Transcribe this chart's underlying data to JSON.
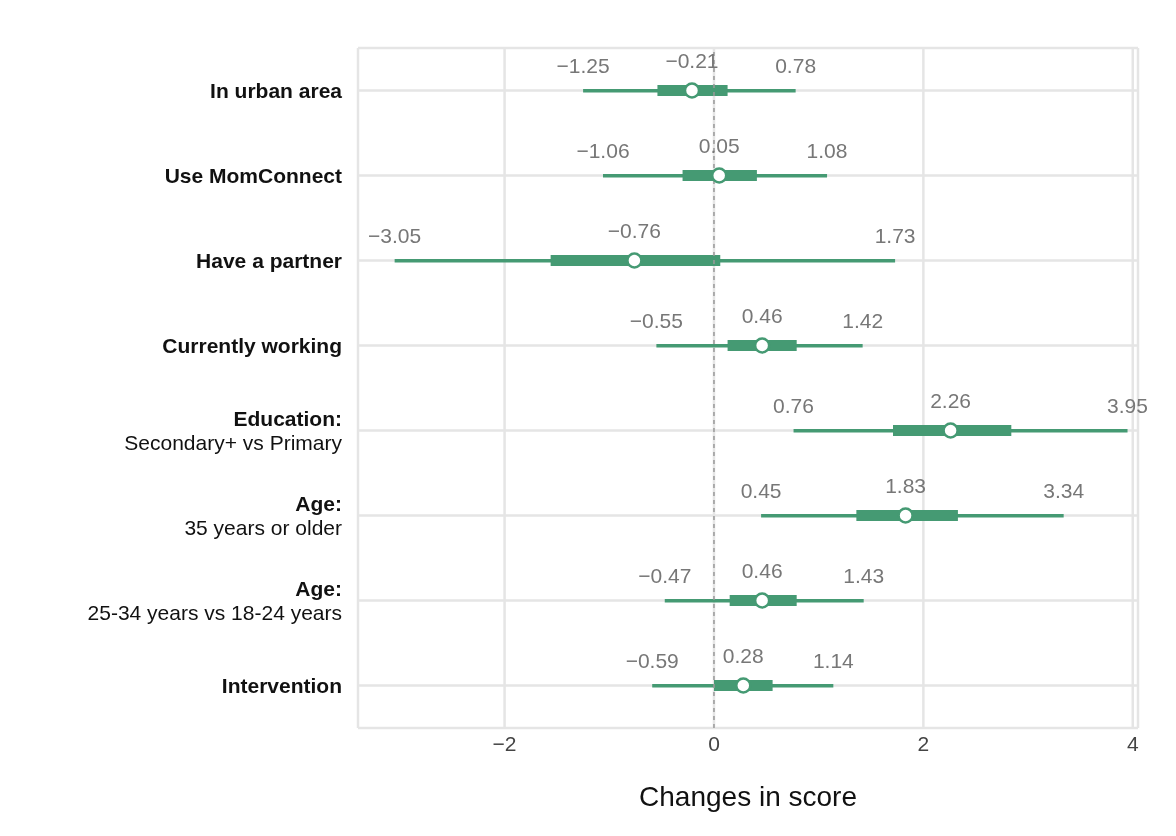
{
  "chart_data": {
    "type": "bar",
    "orientation": "horizontal",
    "xlabel": "Changes in score",
    "categories": [
      "In urban area",
      "Use MomConnect",
      "Have a partner",
      "Currently working",
      "Education:\nSecondary+ vs Primary",
      "Age:\n35 years or older",
      "Age:\n25-34 years vs 18-24 years",
      "Intervention"
    ],
    "series": [
      {
        "color": "#459a73",
        "base": [
          -1.25,
          -1.06,
          -3.05,
          -0.55,
          0.76,
          0.45,
          -0.47,
          -0.59
        ],
        "values": [
          2.03,
          2.14,
          4.78,
          1.97,
          3.19,
          2.89,
          1.9,
          1.73
        ]
      },
      {
        "color": "#459a73",
        "base": [
          -0.54,
          -0.3,
          -1.56,
          0.13,
          1.71,
          1.36,
          0.15,
          0.0
        ],
        "values": [
          0.67,
          0.71,
          1.62,
          0.66,
          1.13,
          0.97,
          0.64,
          0.56
        ]
      },
      {
        "type": "scatter",
        "color": "#459a73",
        "values": [
          -0.21,
          0.05,
          -0.76,
          0.46,
          2.26,
          1.83,
          0.46,
          0.28
        ],
        "value_labels": [
          "−0.21",
          "0.05",
          "−0.76",
          "0.46",
          "2.26",
          "1.83",
          "0.46",
          "0.28"
        ]
      }
    ],
    "annotations": [
      {
        "text": "−1.25",
        "x": -1.25,
        "y": "In urban area"
      },
      {
        "text": "0.78",
        "x": 0.78,
        "y": "In urban area"
      },
      {
        "text": "−1.06",
        "x": -1.06,
        "y": "Use MomConnect"
      },
      {
        "text": "1.08",
        "x": 1.08,
        "y": "Use MomConnect"
      },
      {
        "text": "−3.05",
        "x": -3.05,
        "y": "Have a partner"
      },
      {
        "text": "1.73",
        "x": 1.73,
        "y": "Have a partner"
      },
      {
        "text": "−0.55",
        "x": -0.55,
        "y": "Currently working"
      },
      {
        "text": "1.42",
        "x": 1.42,
        "y": "Currently working"
      },
      {
        "text": "0.76",
        "x": 0.76,
        "y": "Education:\nSecondary+ vs Primary"
      },
      {
        "text": "3.95",
        "x": 3.95,
        "y": "Education:\nSecondary+ vs Primary"
      },
      {
        "text": "0.45",
        "x": 0.45,
        "y": "Age:\n35 years or older"
      },
      {
        "text": "3.34",
        "x": 3.34,
        "y": "Age:\n35 years or older"
      },
      {
        "text": "−0.47",
        "x": -0.47,
        "y": "Age:\n25-34 years vs 18-24 years"
      },
      {
        "text": "1.43",
        "x": 1.43,
        "y": "Age:\n25-34 years vs 18-24 years"
      },
      {
        "text": "−0.59",
        "x": -0.59,
        "y": "Intervention"
      },
      {
        "text": "1.14",
        "x": 1.14,
        "y": "Intervention"
      }
    ],
    "ref_lines": [
      {
        "axis": "x",
        "value": 0,
        "color": "#999999",
        "line_style": "dashed"
      }
    ],
    "xlim": [
      -3.4,
      4.05
    ],
    "xticks": [
      {
        "value": -2,
        "label": "−2"
      },
      0,
      2,
      4
    ],
    "grid": true,
    "legend": false,
    "marker": "circle"
  }
}
